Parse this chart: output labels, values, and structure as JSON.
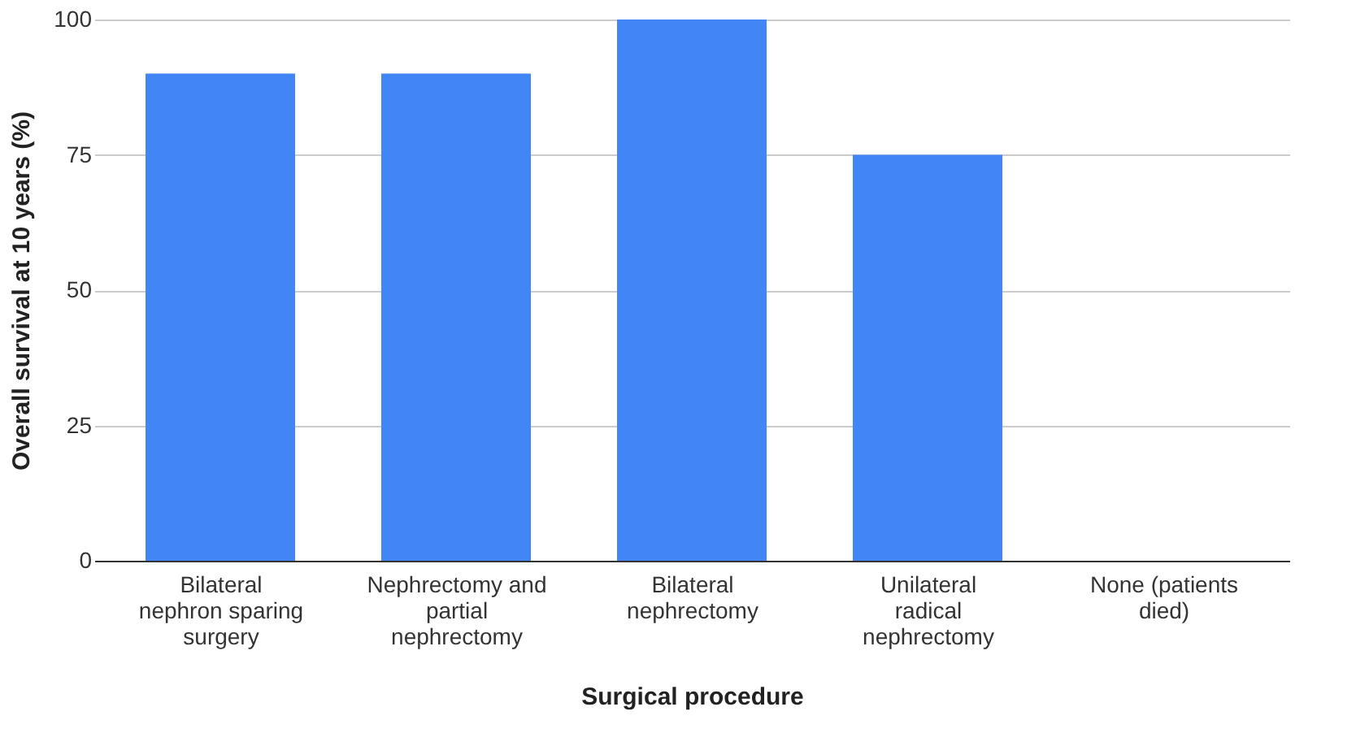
{
  "chart_data": {
    "type": "bar",
    "xlabel": "Surgical procedure",
    "ylabel": "Overall survival at 10 years (%)",
    "categories": [
      "Bilateral nephron sparing surgery",
      "Nephrectomy and partial nephrectomy",
      "Bilateral nephrectomy",
      "Unilateral radical nephrectomy",
      "None (patients died)"
    ],
    "values": [
      90,
      90,
      100,
      75,
      0
    ],
    "color": "#4285f4",
    "ylim": [
      0,
      100
    ],
    "yticks": [
      0,
      25,
      50,
      75,
      100
    ],
    "grid": "y"
  }
}
